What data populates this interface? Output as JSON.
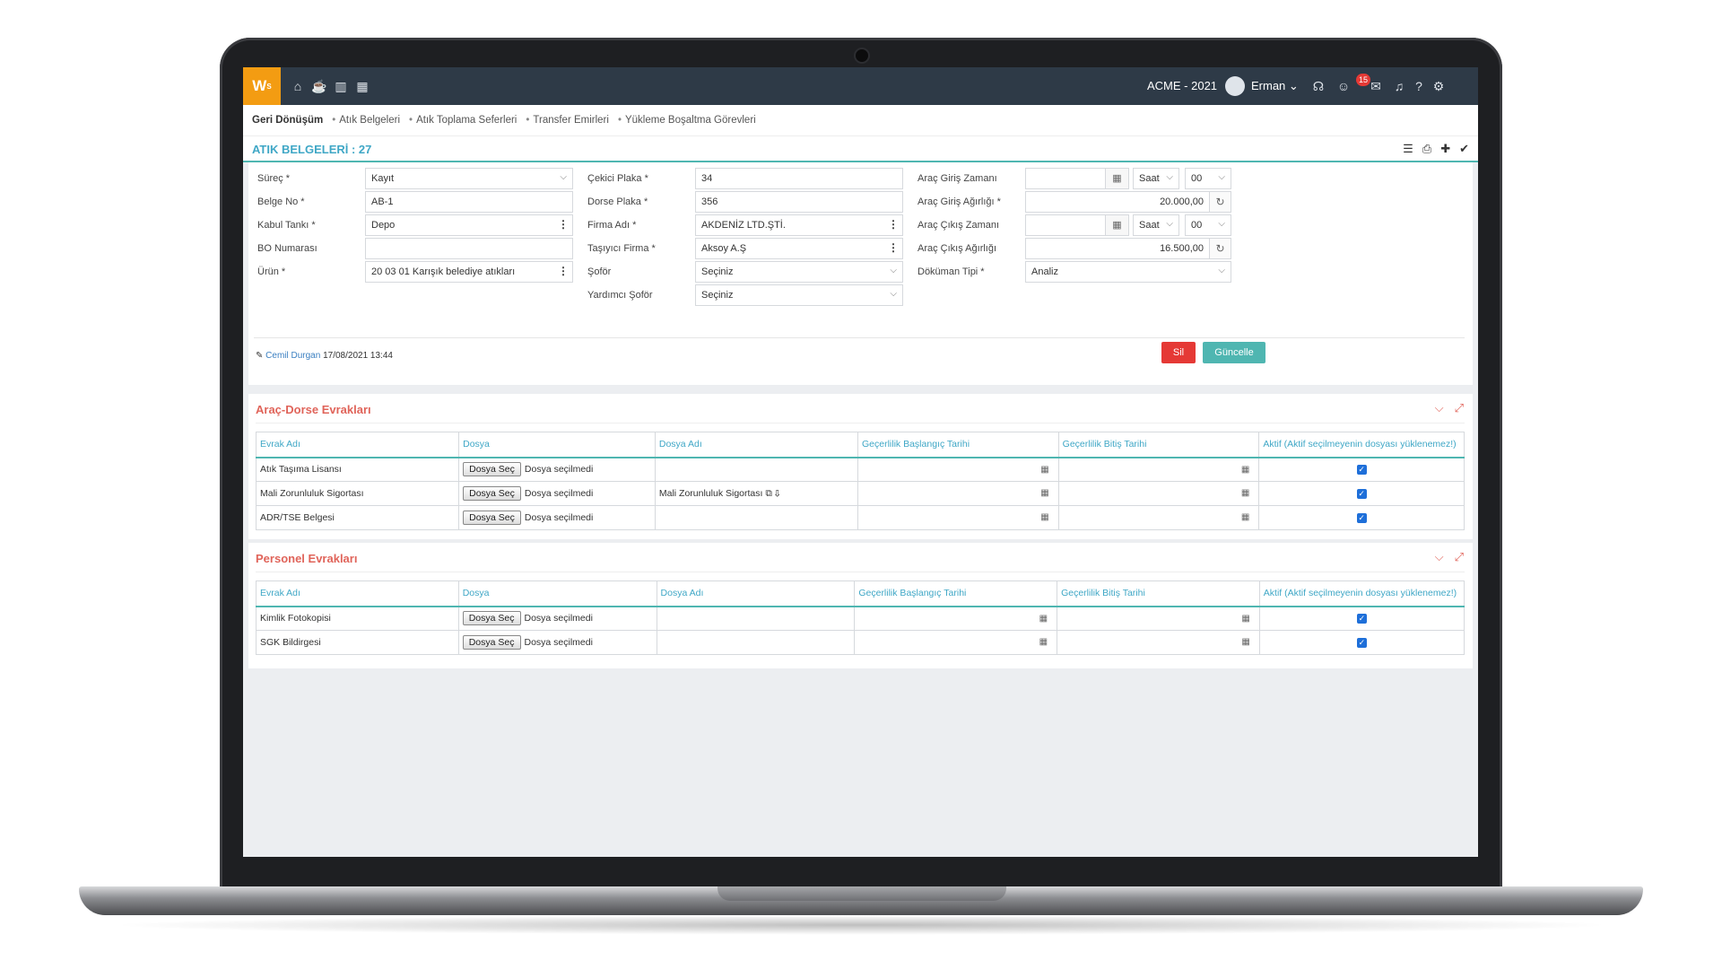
{
  "topbar": {
    "logo": "W",
    "logo_sup": "S",
    "company": "ACME - 2021",
    "user": "Erman",
    "notification_count": "15"
  },
  "breadcrumb": {
    "items": [
      "Geri Dönüşüm",
      "Atık Belgeleri",
      "Atık Toplama Seferleri",
      "Transfer Emirleri",
      "Yükleme Boşaltma Görevleri"
    ]
  },
  "page": {
    "title": "ATIK BELGELERİ : 27"
  },
  "form": {
    "surec": {
      "label": "Süreç *",
      "value": "Kayıt"
    },
    "belge_no": {
      "label": "Belge No *",
      "value": "AB-1"
    },
    "kabul_tanki": {
      "label": "Kabul Tankı *",
      "value": "Depo"
    },
    "bo_numarasi": {
      "label": "BO Numarası",
      "value": ""
    },
    "urun": {
      "label": "Ürün *",
      "value": "20 03 01 Karışık belediye atıkları"
    },
    "cekici_plaka": {
      "label": "Çekici Plaka *",
      "value": "34"
    },
    "dorse_plaka": {
      "label": "Dorse Plaka *",
      "value": "356"
    },
    "firma_adi": {
      "label": "Firma Adı *",
      "value": "AKDENİZ LTD.ŞTİ."
    },
    "tasiyici_firma": {
      "label": "Taşıyıcı Firma *",
      "value": "Aksoy A.Ş"
    },
    "sofor": {
      "label": "Şoför",
      "value": "Seçiniz"
    },
    "yardimci_sofor": {
      "label": "Yardımcı Şoför",
      "value": "Seçiniz"
    },
    "arac_giris_zamani": {
      "label": "Araç Giriş Zamanı",
      "value": "",
      "hour": "Saat",
      "minute": "00"
    },
    "arac_giris_agirligi": {
      "label": "Araç Giriş Ağırlığı *",
      "value": "20.000,00"
    },
    "arac_cikis_zamani": {
      "label": "Araç Çıkış Zamanı",
      "value": "",
      "hour": "Saat",
      "minute": "00"
    },
    "arac_cikis_agirligi": {
      "label": "Araç Çıkış Ağırlığı",
      "value": "16.500,00"
    },
    "dokuman_tipi": {
      "label": "Döküman Tipi *",
      "value": "Analiz"
    },
    "editor_name": "Cemil Durgan",
    "editor_date": "17/08/2021 13:44",
    "delete_label": "Sil",
    "update_label": "Güncelle"
  },
  "columns": [
    "Evrak Adı",
    "Dosya",
    "Dosya Adı",
    "Geçerlilik Başlangıç Tarihi",
    "Geçerlilik Bitiş Tarihi",
    "Aktif (Aktif seçilmeyenin dosyası yüklenemez!)"
  ],
  "file_button": "Dosya Seç",
  "file_none": "Dosya seçilmedi",
  "vehicle_docs": {
    "title": "Araç-Dorse Evrakları",
    "rows": [
      {
        "name": "Atık Taşıma Lisansı",
        "file_name": ""
      },
      {
        "name": "Mali Zorunluluk Sigortası",
        "file_name": "Mali Zorunluluk Sigortası"
      },
      {
        "name": "ADR/TSE Belgesi",
        "file_name": ""
      }
    ]
  },
  "personnel_docs": {
    "title": "Personel Evrakları",
    "rows": [
      {
        "name": "Kimlik Fotokopisi",
        "file_name": ""
      },
      {
        "name": "SGK Bildirgesi",
        "file_name": ""
      }
    ]
  }
}
